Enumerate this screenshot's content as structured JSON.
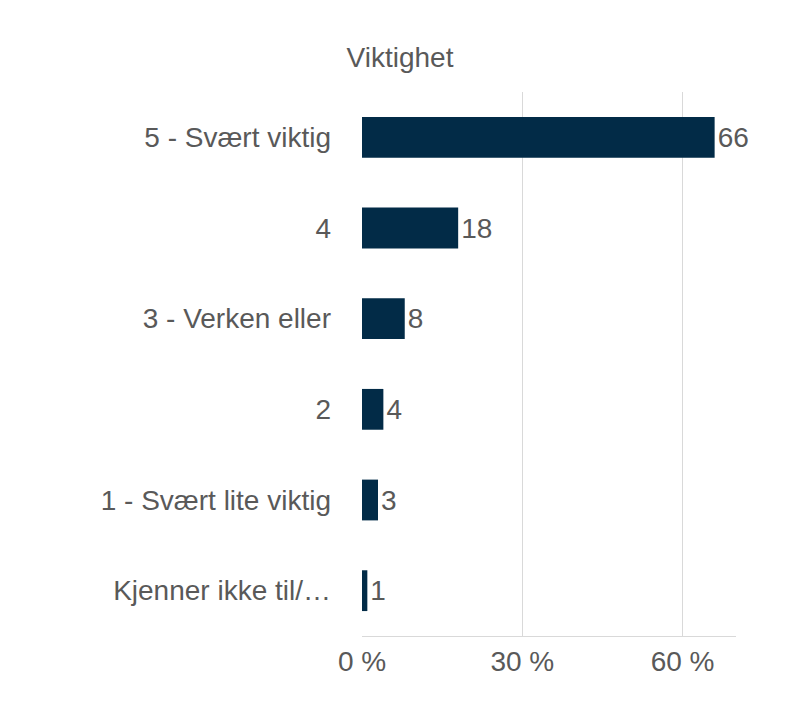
{
  "chart_data": {
    "type": "bar",
    "title": "Viktighet",
    "orientation": "horizontal",
    "categories": [
      "5 - Svært viktig",
      "4",
      "3 - Verken eller",
      "2",
      "1 - Svært lite viktig",
      "Kjenner ikke til/…"
    ],
    "values": [
      66,
      18,
      8,
      4,
      3,
      1
    ],
    "color": "#022b47",
    "xlim": [
      0,
      70
    ],
    "xticks": [
      {
        "value": 0,
        "label": "0 %"
      },
      {
        "value": 30,
        "label": "30 %"
      },
      {
        "value": 60,
        "label": "60 %"
      }
    ],
    "grid": true,
    "data_labels": true
  }
}
